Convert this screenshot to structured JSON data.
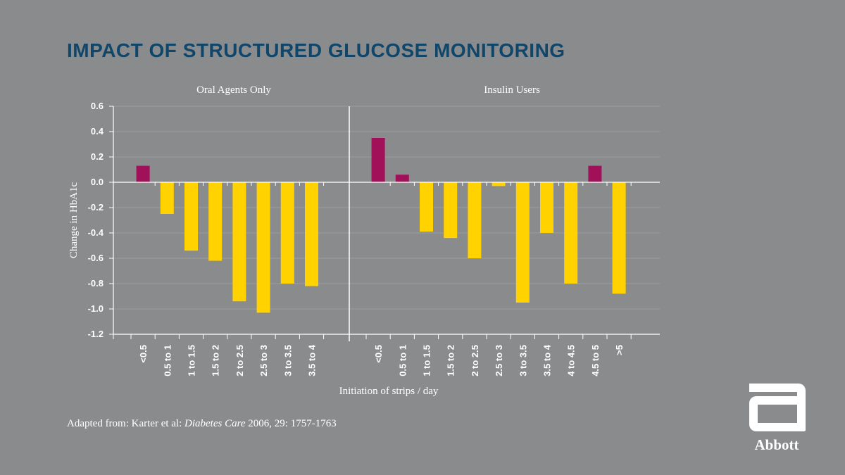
{
  "title": "IMPACT OF STRUCTURED GLUCOSE MONITORING",
  "source": {
    "prefix": "Adapted from: Karter et al: ",
    "journal": "Diabetes Care",
    "suffix": " 2006, 29: 1757-1763"
  },
  "logo": {
    "name": "Abbott",
    "icon": "abbott-mark-icon"
  },
  "colors": {
    "background": "#8a8b8d",
    "title": "#11466b",
    "positive": "#a0115a",
    "negative": "#ffd200",
    "grid": "#9c9d9f"
  },
  "chart_data": {
    "type": "bar",
    "ylabel": "Change in HbA1c",
    "xlabel": "Initiation of strips / day",
    "ylim": [
      -1.2,
      0.6
    ],
    "yticks": [
      "0.6",
      "0.4",
      "0.2",
      "0.0",
      "-0.2",
      "-0.4",
      "-0.6",
      "-0.8",
      "-1.0",
      "-1.2"
    ],
    "grid": true,
    "legend": "none",
    "panels": [
      {
        "title": "Oral Agents Only",
        "categories": [
          "<0.5",
          "0.5 to 1",
          "1 to 1.5",
          "1.5 to 2",
          "2 to 2.5",
          "2.5 to 3",
          "3 to 3.5",
          "3.5 to 4"
        ],
        "values": [
          0.13,
          -0.25,
          -0.54,
          -0.62,
          -0.94,
          -1.03,
          -0.8,
          -0.82
        ]
      },
      {
        "title": "Insulin Users",
        "categories": [
          "<0.5",
          "0.5 to 1",
          "1 to 1.5",
          "1.5 to 2",
          "2 to 2.5",
          "2.5 to 3",
          "3 to 3.5",
          "3.5 to 4",
          "4 to 4.5",
          "4.5 to 5",
          ">5"
        ],
        "values": [
          0.35,
          0.06,
          -0.39,
          -0.44,
          -0.6,
          -0.03,
          -0.95,
          -0.4,
          -0.8,
          0.13,
          -0.88
        ]
      }
    ]
  }
}
